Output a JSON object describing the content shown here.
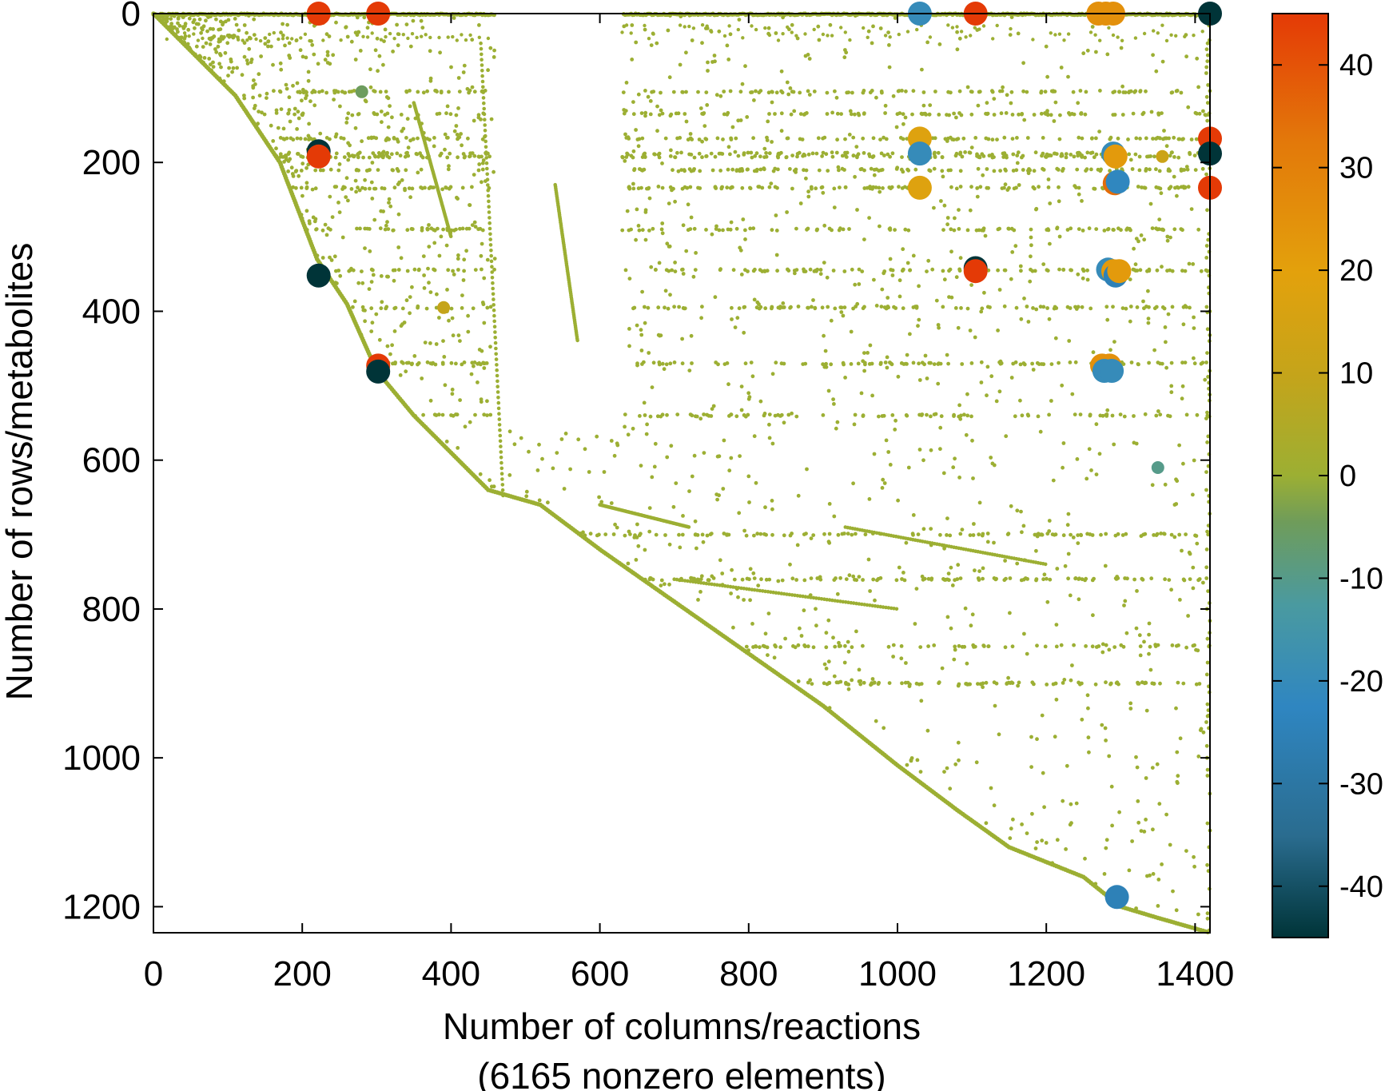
{
  "chart_data": {
    "type": "scatter",
    "title": "",
    "xlabel": "Number of columns/reactions",
    "xlabel_sub": "(6165 nonzero elements)",
    "ylabel": "Number of rows/metabolites",
    "xlim": [
      0,
      1420
    ],
    "ylim": [
      0,
      1235
    ],
    "y_inverted": true,
    "x_ticks": [
      "0",
      "200",
      "400",
      "600",
      "800",
      "1000",
      "1200",
      "1400"
    ],
    "y_ticks": [
      "0",
      "200",
      "400",
      "600",
      "800",
      "1000",
      "1200"
    ],
    "grid": false,
    "colorbar": {
      "range": [
        -45,
        45
      ],
      "ticks": [
        "40",
        "30",
        "20",
        "10",
        "0",
        "-10",
        "-20",
        "-30",
        "-40"
      ],
      "colors": [
        "#003438",
        "#2a6c8f",
        "#2f86c1",
        "#4a9aa0",
        "#6f9c5a",
        "#9caf33",
        "#c5a41a",
        "#e3a10c",
        "#e3790a",
        "#e43a06"
      ]
    },
    "diagonal_path": [
      [
        0,
        0
      ],
      [
        60,
        60
      ],
      [
        110,
        110
      ],
      [
        170,
        200
      ],
      [
        220,
        330
      ],
      [
        260,
        390
      ],
      [
        300,
        480
      ],
      [
        350,
        540
      ],
      [
        400,
        590
      ],
      [
        450,
        640
      ],
      [
        520,
        660
      ],
      [
        600,
        720
      ],
      [
        700,
        790
      ],
      [
        800,
        860
      ],
      [
        900,
        930
      ],
      [
        1000,
        1010
      ],
      [
        1080,
        1070
      ],
      [
        1150,
        1120
      ],
      [
        1250,
        1160
      ],
      [
        1300,
        1200
      ],
      [
        1350,
        1215
      ],
      [
        1420,
        1235
      ]
    ],
    "nonzero_count_label": "6165 nonzero elements",
    "highlighted_points": [
      {
        "x": 222,
        "y": 0,
        "value": 45
      },
      {
        "x": 302,
        "y": 0,
        "value": 45
      },
      {
        "x": 1030,
        "y": 0,
        "value": -20
      },
      {
        "x": 1105,
        "y": 0,
        "value": 45
      },
      {
        "x": 1270,
        "y": 0,
        "value": 25
      },
      {
        "x": 1280,
        "y": 0,
        "value": 25
      },
      {
        "x": 1290,
        "y": 0,
        "value": 25
      },
      {
        "x": 1420,
        "y": 0,
        "value": -45
      },
      {
        "x": 222,
        "y": 185,
        "value": -45
      },
      {
        "x": 222,
        "y": 192,
        "value": 45
      },
      {
        "x": 1030,
        "y": 168,
        "value": 18
      },
      {
        "x": 1030,
        "y": 188,
        "value": -20
      },
      {
        "x": 1030,
        "y": 234,
        "value": 18
      },
      {
        "x": 1290,
        "y": 188,
        "value": -20
      },
      {
        "x": 1293,
        "y": 192,
        "value": 22
      },
      {
        "x": 1292,
        "y": 228,
        "value": 35
      },
      {
        "x": 1296,
        "y": 226,
        "value": -22
      },
      {
        "x": 1420,
        "y": 168,
        "value": 45
      },
      {
        "x": 1420,
        "y": 188,
        "value": -45
      },
      {
        "x": 1420,
        "y": 234,
        "value": 45
      },
      {
        "x": 222,
        "y": 352,
        "value": -45
      },
      {
        "x": 1105,
        "y": 342,
        "value": -45
      },
      {
        "x": 1105,
        "y": 346,
        "value": 45
      },
      {
        "x": 1283,
        "y": 344,
        "value": -20
      },
      {
        "x": 1290,
        "y": 346,
        "value": 22
      },
      {
        "x": 1293,
        "y": 352,
        "value": -25
      },
      {
        "x": 1298,
        "y": 346,
        "value": 22
      },
      {
        "x": 302,
        "y": 473,
        "value": 45
      },
      {
        "x": 302,
        "y": 481,
        "value": -45
      },
      {
        "x": 1275,
        "y": 473,
        "value": 25
      },
      {
        "x": 1285,
        "y": 473,
        "value": 25
      },
      {
        "x": 1278,
        "y": 480,
        "value": -20
      },
      {
        "x": 1288,
        "y": 480,
        "value": -20
      },
      {
        "x": 1295,
        "y": 1187,
        "value": -25
      },
      {
        "x": 1350,
        "y": 610,
        "value": -10
      },
      {
        "x": 390,
        "y": 395,
        "value": 10
      },
      {
        "x": 280,
        "y": 105,
        "value": -5
      },
      {
        "x": 1356,
        "y": 192,
        "value": 12
      }
    ]
  }
}
